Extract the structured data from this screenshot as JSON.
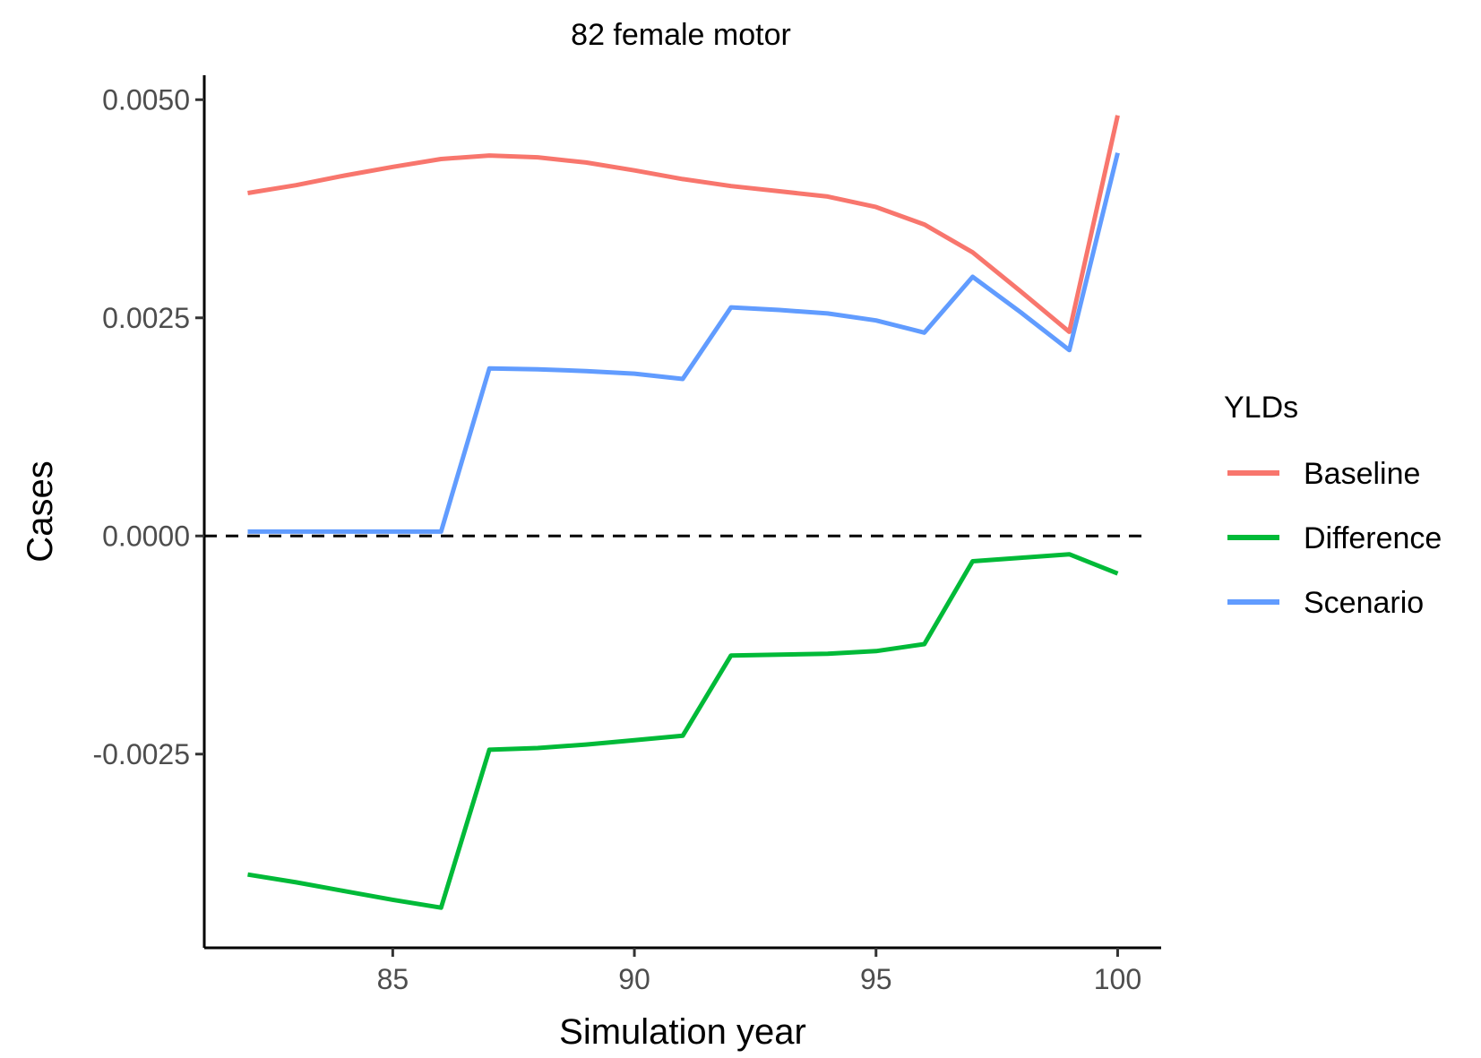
{
  "chart_data": {
    "type": "line",
    "title": "82 female motor",
    "xlabel": "Simulation year",
    "ylabel": "Cases",
    "xlim": [
      81.1,
      100.9
    ],
    "ylim": [
      -0.00472,
      0.00528
    ],
    "x_ticks": [
      85,
      90,
      95,
      100
    ],
    "x_tick_labels": [
      "85",
      "90",
      "95",
      "100"
    ],
    "y_ticks": [
      -0.0025,
      0.0,
      0.0025,
      0.005
    ],
    "y_tick_labels": [
      "-0.0025",
      "0.0000",
      "0.0025",
      "0.0050"
    ],
    "reference_line": {
      "y": 0,
      "style": "dashed",
      "color": "#000000"
    },
    "grid": false,
    "legend": {
      "title": "YLDs",
      "position": "right"
    },
    "x": [
      82,
      83,
      84,
      85,
      86,
      87,
      88,
      89,
      90,
      91,
      92,
      93,
      94,
      95,
      96,
      97,
      98,
      99,
      100
    ],
    "series": [
      {
        "name": "Baseline",
        "color": "#F8766D",
        "values": [
          0.00393,
          0.00402,
          0.00413,
          0.00423,
          0.00432,
          0.00436,
          0.00434,
          0.00428,
          0.00419,
          0.00409,
          0.00401,
          0.00395,
          0.00389,
          0.00377,
          0.00357,
          0.00325,
          0.0028,
          0.00234,
          0.00482
        ]
      },
      {
        "name": "Difference",
        "color": "#00BA38",
        "values": [
          -0.00388,
          -0.00397,
          -0.00407,
          -0.00417,
          -0.00426,
          -0.00245,
          -0.00243,
          -0.00239,
          -0.00234,
          -0.00229,
          -0.00137,
          -0.00136,
          -0.00135,
          -0.00132,
          -0.00124,
          -0.00029,
          -0.00025,
          -0.00021,
          -0.00043
        ]
      },
      {
        "name": "Scenario",
        "color": "#619CFF",
        "values": [
          5e-05,
          5e-05,
          5e-05,
          5e-05,
          5e-05,
          0.00192,
          0.00191,
          0.00189,
          0.00186,
          0.0018,
          0.00262,
          0.00259,
          0.00255,
          0.00247,
          0.00233,
          0.00297,
          0.00256,
          0.00213,
          0.00439
        ]
      }
    ]
  }
}
